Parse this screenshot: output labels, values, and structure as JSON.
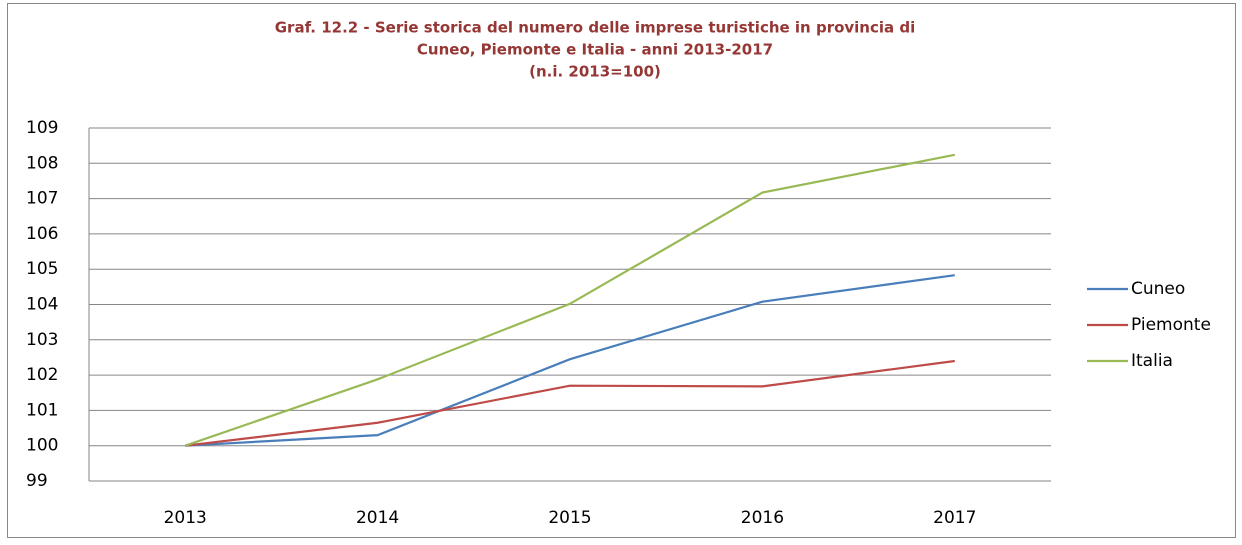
{
  "chart_data": {
    "type": "line",
    "title": [
      "Graf. 12.2 - Serie storica del numero delle imprese turistiche in provincia di",
      "Cuneo, Piemonte e Italia - anni 2013-2017",
      "(n.i. 2013=100)"
    ],
    "categories": [
      "2013",
      "2014",
      "2015",
      "2016",
      "2017"
    ],
    "series": [
      {
        "name": "Cuneo",
        "color": "#4a7ebb",
        "values": [
          100,
          100.3,
          102.45,
          104.08,
          104.83
        ]
      },
      {
        "name": "Piemonte",
        "color": "#be4b48",
        "values": [
          100,
          100.65,
          101.7,
          101.68,
          102.4
        ]
      },
      {
        "name": "Italia",
        "color": "#98b954",
        "values": [
          100,
          101.88,
          104.02,
          107.17,
          108.24
        ]
      }
    ],
    "ylim": [
      99,
      109
    ],
    "yticks": [
      99,
      100,
      101,
      102,
      103,
      104,
      105,
      106,
      107,
      108,
      109
    ],
    "grid": true,
    "legend": "right"
  }
}
